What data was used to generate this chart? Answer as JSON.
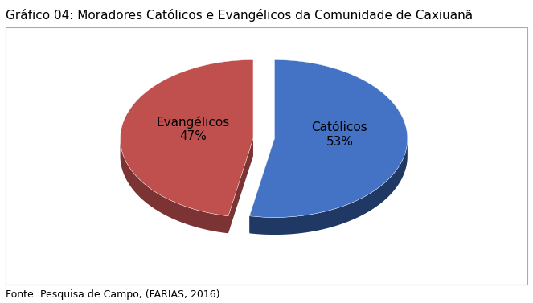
{
  "title": "Gráfico 04: Moradores Católicos e Evangélicos da Comunidade de Caxiuanã",
  "source": "Fonte: Pesquisa de Campo, (FARIAS, 2016)",
  "slices": [
    {
      "label": "Católicos\n53%",
      "value": 53,
      "color": "#4472C4",
      "shadow_color": "#1F3864"
    },
    {
      "label": "Evangélicos\n47%",
      "value": 47,
      "color": "#C0504D",
      "shadow_color": "#7B3333"
    }
  ],
  "background_color": "#FFFFFF",
  "title_fontsize": 11,
  "label_fontsize": 11,
  "source_fontsize": 9
}
